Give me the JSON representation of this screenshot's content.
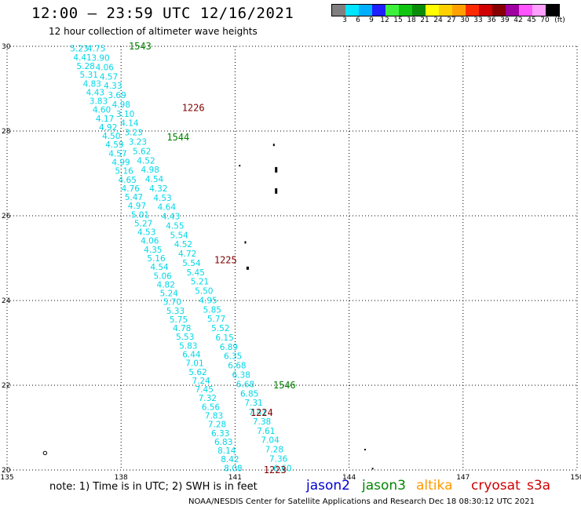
{
  "header": {
    "title": "12:00 – 23:59 UTC 12/16/2021",
    "subtitle": "12 hour collection of altimeter wave heights"
  },
  "colorbar": {
    "colors": [
      "#7f7f7f",
      "#00e5ff",
      "#00b0ff",
      "#1e1eff",
      "#3cf03c",
      "#12c412",
      "#0a8c0a",
      "#ffff00",
      "#ffd000",
      "#ffa000",
      "#ff2a00",
      "#d00000",
      "#860000",
      "#a000a0",
      "#ff55ff",
      "#ffa0ff",
      "#000000"
    ],
    "labels": [
      "3",
      "6",
      "9",
      "12",
      "15",
      "18",
      "21",
      "24",
      "27",
      "30",
      "33",
      "36",
      "39",
      "42",
      "45",
      "70",
      "(ft)"
    ]
  },
  "axes": {
    "x_ticks": [
      "135",
      "138",
      "141",
      "144",
      "147",
      "150"
    ],
    "y_ticks": [
      "30",
      "28",
      "26",
      "24",
      "22",
      "20"
    ]
  },
  "track_labels": [
    {
      "text": "1543",
      "lat": 30.0,
      "lon": 138.5,
      "color": "#008000"
    },
    {
      "text": "1226",
      "lat": 28.55,
      "lon": 139.9,
      "color": "#800000"
    },
    {
      "text": "1544",
      "lat": 27.85,
      "lon": 139.5,
      "color": "#008000"
    },
    {
      "text": "1225",
      "lat": 24.95,
      "lon": 140.75,
      "color": "#800000"
    },
    {
      "text": "1546",
      "lat": 22.0,
      "lon": 142.3,
      "color": "#008000"
    },
    {
      "text": "1224",
      "lat": 21.35,
      "lon": 141.7,
      "color": "#800000"
    },
    {
      "text": "1223",
      "lat": 20.0,
      "lon": 142.05,
      "color": "#800000"
    }
  ],
  "track_a": {
    "color": "#00d8e8",
    "start_lat": 29.95,
    "end_lat": 20.05,
    "start_lon": 136.9,
    "end_lon": 140.95,
    "values": [
      "5.23",
      "4.41",
      "5.28",
      "5.31",
      "4.83",
      "4.43",
      "3.83",
      "4.60",
      "4.17",
      "4.92",
      "4.50",
      "4.59",
      "4.57",
      "4.99",
      "5.16",
      "4.65",
      "4.76",
      "5.47",
      "4.97",
      "5.01",
      "5.27",
      "4.53",
      "4.06",
      "4.35",
      "5.16",
      "4.54",
      "5.06",
      "4.82",
      "5.24",
      "5.70",
      "5.33",
      "5.75",
      "4.78",
      "5.53",
      "5.83",
      "6.44",
      "7.01",
      "5.62",
      "7.24",
      "7.45",
      "7.32",
      "6.56",
      "7.83",
      "7.28",
      "6.33",
      "6.83",
      "8.14",
      "8.42",
      "8.08"
    ]
  },
  "track_b": {
    "color": "#00d8e8",
    "start_lat": 29.95,
    "end_lat": 20.05,
    "start_lon": 137.35,
    "end_lon": 142.25,
    "values": [
      "4.75",
      "3.90",
      "4.06",
      "4.57",
      "4.33",
      "3.69",
      "4.98",
      "3.10",
      "4.14",
      "3.23",
      "3.23",
      "5.62",
      "4.52",
      "4.98",
      "4.54",
      "4.32",
      "4.53",
      "4.64",
      "4.43",
      "4.55",
      "5.54",
      "4.52",
      "4.72",
      "5.54",
      "5.45",
      "5.21",
      "5.50",
      "4.95",
      "5.85",
      "5.77",
      "5.52",
      "6.15",
      "6.89",
      "6.35",
      "6.68",
      "6.38",
      "6.68",
      "6.85",
      "7.31",
      "7.41",
      "7.38",
      "7.61",
      "7.04",
      "7.28",
      "7.36",
      "6.60"
    ]
  },
  "islands": [
    {
      "lat": 27.7,
      "lon": 142.0,
      "w": 2,
      "h": 3
    },
    {
      "lat": 27.15,
      "lon": 142.05,
      "w": 3,
      "h": 7
    },
    {
      "lat": 26.65,
      "lon": 142.05,
      "w": 3,
      "h": 7
    },
    {
      "lat": 27.2,
      "lon": 141.1,
      "w": 2,
      "h": 2
    },
    {
      "lat": 25.4,
      "lon": 141.25,
      "w": 2,
      "h": 3
    },
    {
      "lat": 24.8,
      "lon": 141.3,
      "w": 3,
      "h": 4
    },
    {
      "lat": 20.5,
      "lon": 144.4,
      "w": 2,
      "h": 2
    },
    {
      "lat": 20.05,
      "lon": 144.6,
      "w": 2,
      "h": 2
    }
  ],
  "circle_islands": [
    {
      "lat": 20.4,
      "lon": 136.0
    }
  ],
  "footer": {
    "note": "note: 1) Time is in UTC; 2) SWH is in feet",
    "legend": [
      {
        "label": "jason2",
        "color": "#0000d0"
      },
      {
        "label": "jason3",
        "color": "#008800"
      },
      {
        "label": "altika",
        "color": "#ff9900"
      },
      {
        "label": "cryosat",
        "color": "#d00000"
      },
      {
        "label": "s3a",
        "color": "#d00000"
      }
    ],
    "credit": "NOAA/NESDIS Center for Satellite Applications and Research    Dec 18 08:30:12 UTC 2021"
  }
}
